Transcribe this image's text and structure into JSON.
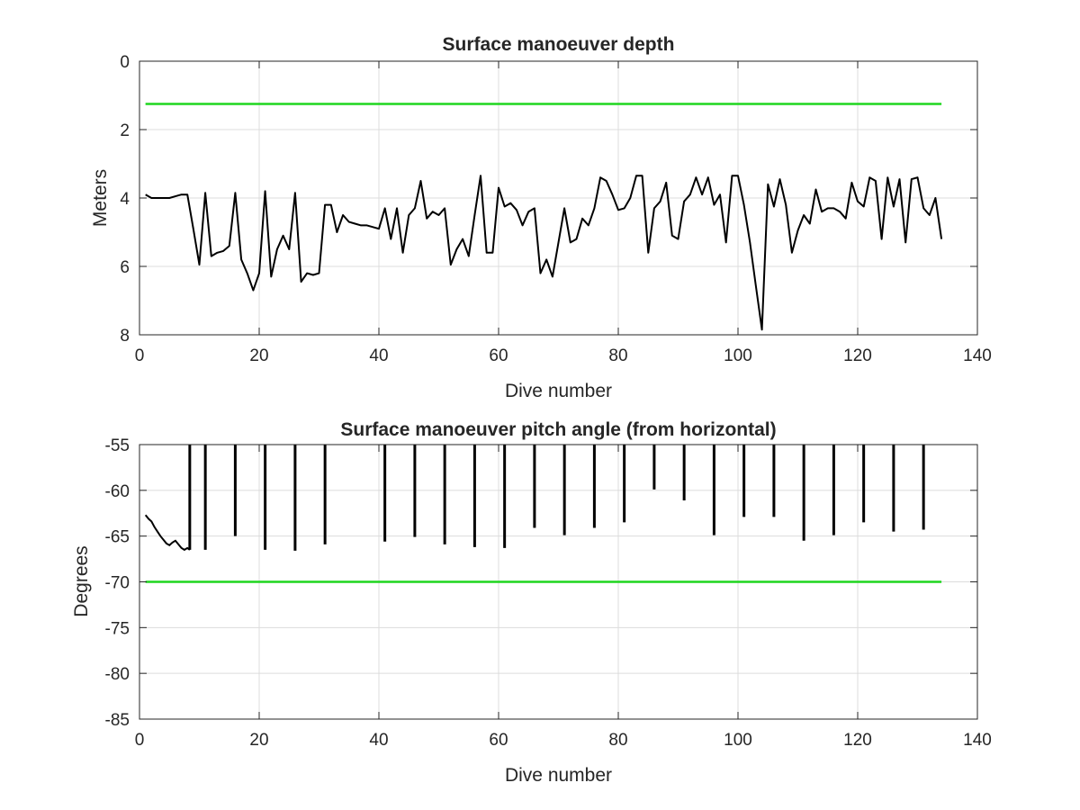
{
  "chart_data": [
    {
      "type": "line",
      "title": "Surface manoeuver depth",
      "xlabel": "Dive number",
      "ylabel": "Meters",
      "xlim": [
        0,
        140
      ],
      "ylim": [
        0,
        8
      ],
      "y_reversed": true,
      "grid": true,
      "xticks": [
        "0",
        "20",
        "40",
        "60",
        "80",
        "100",
        "120",
        "140"
      ],
      "yticks": [
        "0",
        "2",
        "4",
        "6",
        "8"
      ],
      "reference_line": {
        "value": 1.25,
        "from": 1,
        "to": 134,
        "color": "#1fd61f"
      },
      "series_color": "#000000",
      "x": [
        1,
        2,
        3,
        4,
        5,
        6,
        7,
        8,
        9,
        10,
        11,
        12,
        13,
        14,
        15,
        16,
        17,
        18,
        19,
        20,
        21,
        22,
        23,
        24,
        25,
        26,
        27,
        28,
        29,
        30,
        31,
        32,
        33,
        34,
        35,
        36,
        37,
        38,
        39,
        40,
        41,
        42,
        43,
        44,
        45,
        46,
        47,
        48,
        49,
        50,
        51,
        52,
        53,
        54,
        55,
        56,
        57,
        58,
        59,
        60,
        61,
        62,
        63,
        64,
        65,
        66,
        67,
        68,
        69,
        70,
        71,
        72,
        73,
        74,
        75,
        76,
        77,
        78,
        79,
        80,
        81,
        82,
        83,
        84,
        85,
        86,
        87,
        88,
        89,
        90,
        91,
        92,
        93,
        94,
        95,
        96,
        97,
        98,
        99,
        100,
        101,
        102,
        103,
        104,
        105,
        106,
        107,
        108,
        109,
        110,
        111,
        112,
        113,
        114,
        115,
        116,
        117,
        118,
        119,
        120,
        121,
        122,
        123,
        124,
        125,
        126,
        127,
        128,
        129,
        130,
        131,
        132,
        133,
        134
      ],
      "values": [
        3.9,
        4.0,
        4.0,
        4.0,
        4.0,
        3.95,
        3.9,
        3.9,
        4.9,
        5.95,
        3.85,
        5.7,
        5.6,
        5.55,
        5.4,
        3.85,
        5.8,
        6.2,
        6.7,
        6.2,
        3.8,
        6.3,
        5.5,
        5.1,
        5.5,
        3.85,
        6.45,
        6.2,
        6.25,
        6.2,
        4.2,
        4.2,
        5.0,
        4.5,
        4.7,
        4.75,
        4.8,
        4.8,
        4.85,
        4.9,
        4.3,
        5.2,
        4.3,
        5.6,
        4.5,
        4.3,
        3.5,
        4.6,
        4.4,
        4.5,
        4.3,
        5.95,
        5.5,
        5.2,
        5.7,
        4.5,
        3.35,
        5.6,
        5.6,
        3.7,
        4.25,
        4.15,
        4.35,
        4.8,
        4.4,
        4.3,
        6.2,
        5.8,
        6.3,
        5.3,
        4.3,
        5.3,
        5.2,
        4.6,
        4.8,
        4.3,
        3.4,
        3.5,
        3.9,
        4.35,
        4.3,
        4.0,
        3.35,
        3.35,
        5.6,
        4.3,
        4.1,
        3.55,
        5.1,
        5.2,
        4.1,
        3.9,
        3.4,
        3.9,
        3.4,
        4.2,
        3.9,
        5.3,
        3.35,
        3.35,
        4.2,
        5.3,
        6.6,
        7.85,
        3.6,
        4.25,
        3.45,
        4.2,
        5.6,
        4.95,
        4.5,
        4.75,
        3.75,
        4.4,
        4.3,
        4.3,
        4.4,
        4.6,
        3.55,
        4.1,
        4.25,
        3.4,
        3.5,
        5.2,
        3.4,
        4.25,
        3.45,
        5.3,
        3.45,
        3.4,
        4.3,
        4.5,
        4.0,
        5.2
      ]
    },
    {
      "type": "line",
      "title": "Surface manoeuver pitch angle (from horizontal)",
      "xlabel": "Dive number",
      "ylabel": "Degrees",
      "xlim": [
        0,
        140
      ],
      "ylim": [
        -85,
        -55
      ],
      "grid": true,
      "xticks": [
        "0",
        "20",
        "40",
        "60",
        "80",
        "100",
        "120",
        "140"
      ],
      "yticks": [
        "-55",
        "-60",
        "-65",
        "-70",
        "-75",
        "-80",
        "-85"
      ],
      "reference_line": {
        "value": -70,
        "from": 1,
        "to": 134,
        "color": "#1fd61f"
      },
      "series_color": "#000000",
      "initial_curve": {
        "x": [
          1,
          1.5,
          2,
          2.5,
          3,
          3.5,
          4,
          4.5,
          5,
          5.5,
          6,
          6.5,
          7,
          7.5,
          8,
          8.4
        ],
        "values": [
          -62.7,
          -63.1,
          -63.4,
          -64.0,
          -64.5,
          -65.0,
          -65.4,
          -65.8,
          -66.0,
          -65.7,
          -65.5,
          -65.9,
          -66.3,
          -66.5,
          -66.3,
          -66.5
        ]
      },
      "spikes": [
        {
          "x": 8.4,
          "min": -66.5
        },
        {
          "x": 11,
          "min": -66.5
        },
        {
          "x": 16,
          "min": -65
        },
        {
          "x": 21,
          "min": -66.5
        },
        {
          "x": 26,
          "min": -66.6
        },
        {
          "x": 31,
          "min": -65.9
        },
        {
          "x": 41,
          "min": -65.6
        },
        {
          "x": 46,
          "min": -65.1
        },
        {
          "x": 51,
          "min": -65.9
        },
        {
          "x": 56,
          "min": -66.2
        },
        {
          "x": 61,
          "min": -66.3
        },
        {
          "x": 66,
          "min": -64.1
        },
        {
          "x": 71,
          "min": -64.9
        },
        {
          "x": 76,
          "min": -64.1
        },
        {
          "x": 81,
          "min": -63.5
        },
        {
          "x": 86,
          "min": -59.9
        },
        {
          "x": 91,
          "min": -61.1
        },
        {
          "x": 96,
          "min": -64.9
        },
        {
          "x": 101,
          "min": -62.9
        },
        {
          "x": 106,
          "min": -62.9
        },
        {
          "x": 111,
          "min": -65.5
        },
        {
          "x": 116,
          "min": -64.9
        },
        {
          "x": 121,
          "min": -63.5
        },
        {
          "x": 126,
          "min": -64.5
        },
        {
          "x": 131,
          "min": -64.3
        }
      ]
    }
  ]
}
